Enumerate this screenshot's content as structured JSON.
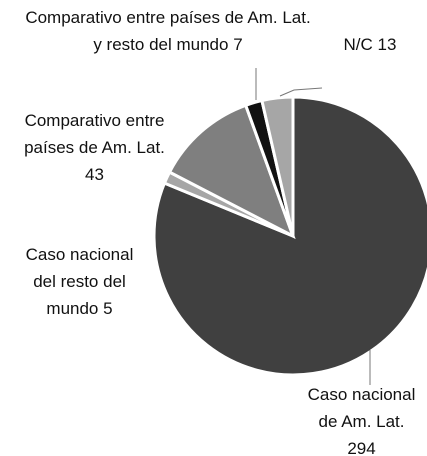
{
  "chart_data": {
    "type": "pie",
    "categories": [
      "Caso nacional de Am. Lat.",
      "Caso nacional del resto del mundo",
      "Comparativo entre países de Am. Lat.",
      "Comparativo entre países de Am. Lat. y resto del mundo",
      "N/C"
    ],
    "values": [
      294,
      5,
      43,
      7,
      13
    ],
    "colors": [
      "#404040",
      "#a6a6a6",
      "#7f7f7f",
      "#111111",
      "#a6a6a6"
    ]
  }
}
